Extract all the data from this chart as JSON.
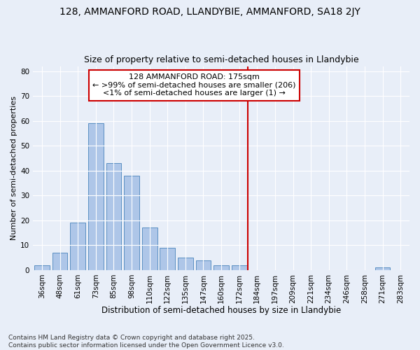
{
  "title": "128, AMMANFORD ROAD, LLANDYBIE, AMMANFORD, SA18 2JY",
  "subtitle": "Size of property relative to semi-detached houses in Llandybie",
  "xlabel": "Distribution of semi-detached houses by size in Llandybie",
  "ylabel": "Number of semi-detached properties",
  "categories": [
    "36sqm",
    "48sqm",
    "61sqm",
    "73sqm",
    "85sqm",
    "98sqm",
    "110sqm",
    "122sqm",
    "135sqm",
    "147sqm",
    "160sqm",
    "172sqm",
    "184sqm",
    "197sqm",
    "209sqm",
    "221sqm",
    "234sqm",
    "246sqm",
    "258sqm",
    "271sqm",
    "283sqm"
  ],
  "bar_heights": [
    2,
    7,
    19,
    59,
    43,
    38,
    17,
    9,
    5,
    4,
    2,
    2,
    0,
    0,
    0,
    0,
    0,
    0,
    0,
    1,
    0
  ],
  "bar_color": "#aec6e8",
  "bar_edge_color": "#5a8fc2",
  "vline_color": "#cc0000",
  "annotation_text": "128 AMMANFORD ROAD: 175sqm\n← >99% of semi-detached houses are smaller (206)\n<1% of semi-detached houses are larger (1) →",
  "annotation_box_color": "#ffffff",
  "annotation_box_edge": "#cc0000",
  "ylim": [
    0,
    82
  ],
  "yticks": [
    0,
    10,
    20,
    30,
    40,
    50,
    60,
    70,
    80
  ],
  "background_color": "#e8eef8",
  "grid_color": "#ffffff",
  "footnote": "Contains HM Land Registry data © Crown copyright and database right 2025.\nContains public sector information licensed under the Open Government Licence v3.0.",
  "title_fontsize": 10,
  "subtitle_fontsize": 9,
  "xlabel_fontsize": 8.5,
  "ylabel_fontsize": 8,
  "tick_fontsize": 7.5,
  "annot_fontsize": 8,
  "footnote_fontsize": 6.5
}
